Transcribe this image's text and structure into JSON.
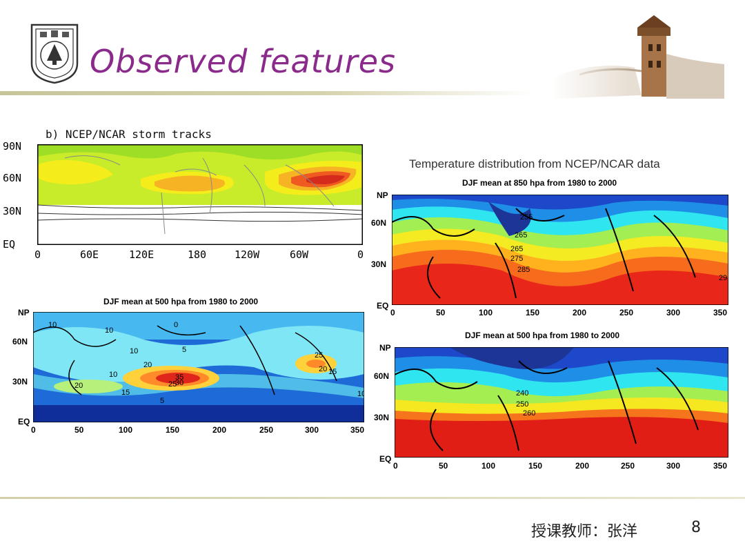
{
  "slide": {
    "title": "Observed features",
    "footer_text": "授课教师：张洋",
    "page_number": "8",
    "temperature_heading": "Temperature distribution from NCEP/NCAR data"
  },
  "storm_panel": {
    "title": "b) NCEP/NCAR storm tracks",
    "y_ticks": [
      "90N",
      "60N",
      "30N",
      "EQ"
    ],
    "x_ticks": [
      "0",
      "60E",
      "120E",
      "180",
      "120W",
      "60W",
      "0"
    ]
  },
  "wind_panel": {
    "title": "DJF mean at 500 hpa from 1980 to 2000",
    "y_ticks": [
      "NP",
      "60N",
      "30N",
      "EQ"
    ],
    "x_ticks": [
      "0",
      "50",
      "100",
      "150",
      "200",
      "250",
      "300",
      "350"
    ],
    "contour_labels": [
      "10",
      "10",
      "0",
      "10",
      "5",
      "10",
      "20",
      "20",
      "15",
      "35",
      "30",
      "25",
      "25",
      "20",
      "15",
      "10",
      "5"
    ]
  },
  "temp850_panel": {
    "title": "DJF mean at 850 hpa from 1980 to 2000",
    "y_ticks": [
      "NP",
      "60N",
      "30N",
      "EQ"
    ],
    "x_ticks": [
      "0",
      "50",
      "100",
      "150",
      "200",
      "250",
      "300",
      "350"
    ],
    "contour_labels": [
      "255",
      "265",
      "265",
      "275",
      "285",
      "29"
    ]
  },
  "temp500_panel": {
    "title": "DJF mean at 500 hpa from 1980 to 2000",
    "y_ticks": [
      "NP",
      "60N",
      "30N",
      "EQ"
    ],
    "x_ticks": [
      "0",
      "50",
      "100",
      "150",
      "200",
      "250",
      "300",
      "350"
    ],
    "contour_labels": [
      "240",
      "250",
      "260"
    ]
  }
}
